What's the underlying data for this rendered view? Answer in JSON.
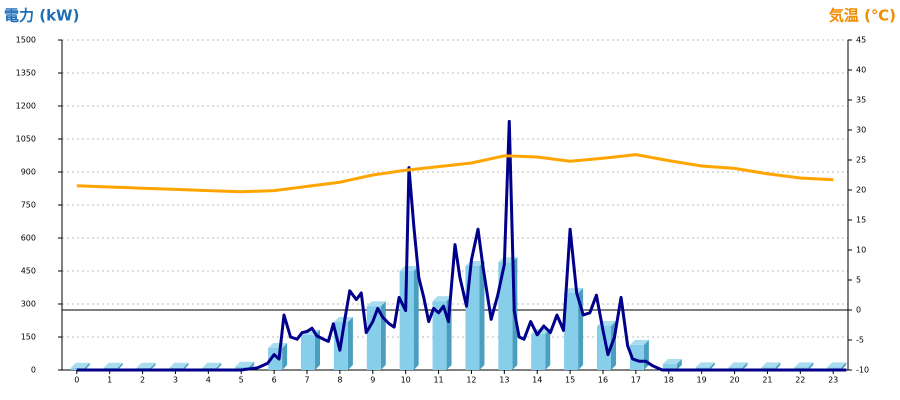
{
  "chart_data": {
    "type": "bar",
    "y_title": "電力 (kW)",
    "y2_title": "気温 (℃)",
    "x": [
      0,
      1,
      2,
      3,
      4,
      5,
      6,
      7,
      8,
      9,
      10,
      11,
      12,
      13,
      14,
      15,
      16,
      17,
      18,
      19,
      20,
      21,
      22,
      23
    ],
    "xlim": [
      -0.45,
      23.45
    ],
    "xticks": [
      0,
      1,
      2,
      3,
      4,
      5,
      6,
      7,
      8,
      9,
      10,
      11,
      12,
      13,
      14,
      15,
      16,
      17,
      18,
      19,
      20,
      21,
      22,
      23
    ],
    "ylim": [
      0,
      1500
    ],
    "yticks": [
      0,
      150,
      300,
      450,
      600,
      750,
      900,
      1050,
      1200,
      1350,
      1500
    ],
    "y2lim": [
      -10,
      45
    ],
    "y2ticks": [
      -10,
      -5,
      0,
      5,
      10,
      15,
      20,
      25,
      30,
      35,
      40,
      45
    ],
    "grid": true,
    "series": [
      {
        "type": "bar",
        "color": "#87ceeb",
        "values": [
          10,
          10,
          10,
          10,
          10,
          15,
          100,
          160,
          218,
          290,
          450,
          313,
          473,
          490,
          164,
          350,
          200,
          114,
          27,
          12,
          12,
          12,
          12,
          12
        ]
      },
      {
        "type": "line",
        "color": "#00008b",
        "x": [
          0,
          5,
          5.5,
          5.8,
          6.0,
          6.15,
          6.3,
          6.5,
          6.7,
          6.85,
          7.0,
          7.15,
          7.3,
          7.5,
          7.65,
          7.8,
          8.0,
          8.15,
          8.3,
          8.5,
          8.65,
          8.8,
          9.0,
          9.15,
          9.3,
          9.5,
          9.65,
          9.8,
          10.0,
          10.1,
          10.25,
          10.4,
          10.55,
          10.7,
          10.85,
          11.0,
          11.15,
          11.3,
          11.5,
          11.65,
          11.85,
          12.0,
          12.2,
          12.35,
          12.6,
          12.8,
          13.0,
          13.15,
          13.3,
          13.45,
          13.6,
          13.8,
          14.0,
          14.2,
          14.4,
          14.6,
          14.8,
          15.0,
          15.2,
          15.4,
          15.6,
          15.8,
          16.0,
          16.15,
          16.35,
          16.55,
          16.75,
          16.9,
          17.1,
          17.3,
          17.5,
          17.8,
          23.4
        ],
        "values": [
          0,
          0,
          10,
          30,
          70,
          50,
          250,
          150,
          140,
          170,
          175,
          190,
          155,
          140,
          130,
          210,
          90,
          230,
          360,
          320,
          350,
          170,
          220,
          280,
          240,
          210,
          195,
          330,
          270,
          920,
          650,
          420,
          330,
          220,
          280,
          260,
          290,
          220,
          570,
          420,
          290,
          500,
          640,
          470,
          230,
          340,
          480,
          1130,
          270,
          150,
          140,
          220,
          160,
          200,
          170,
          250,
          180,
          640,
          350,
          250,
          260,
          340,
          180,
          70,
          150,
          330,
          110,
          50,
          40,
          40,
          20,
          0,
          0
        ]
      },
      {
        "type": "line",
        "axis": "y2",
        "color": "#ffa500",
        "values": [
          20.7,
          20.5,
          20.3,
          20.1,
          19.9,
          19.7,
          19.9,
          20.6,
          21.3,
          22.5,
          23.3,
          23.9,
          24.5,
          25.7,
          25.5,
          24.8,
          25.3,
          25.9,
          24.9,
          24.0,
          23.6,
          22.7,
          22.0,
          21.7
        ]
      }
    ]
  }
}
